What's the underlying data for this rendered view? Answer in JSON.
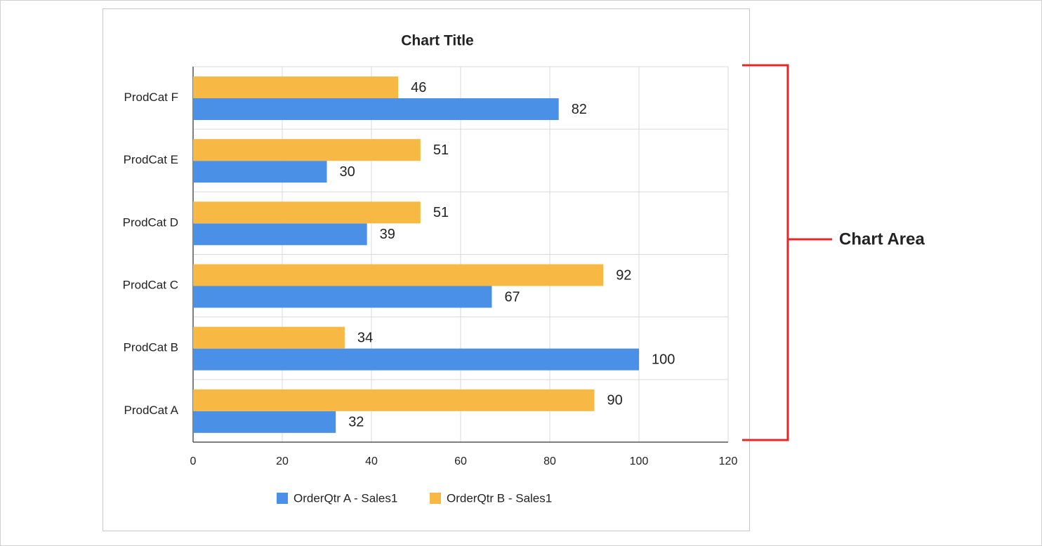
{
  "chart_data": {
    "type": "hbar",
    "title": "Chart Title",
    "categories": [
      "ProdCat A",
      "ProdCat B",
      "ProdCat C",
      "ProdCat D",
      "ProdCat E",
      "ProdCat F"
    ],
    "series": [
      {
        "name": "OrderQtr A - Sales1",
        "color": "#4a90e6",
        "values": [
          32,
          100,
          67,
          39,
          30,
          82
        ]
      },
      {
        "name": "OrderQtr B - Sales1",
        "color": "#f7b944",
        "values": [
          90,
          34,
          92,
          51,
          51,
          46
        ]
      }
    ],
    "xlim": [
      0,
      120
    ],
    "xticks": [
      0,
      20,
      40,
      60,
      80,
      100,
      120
    ],
    "grid": true,
    "legend": "bottom",
    "annotation": "Chart Area"
  }
}
